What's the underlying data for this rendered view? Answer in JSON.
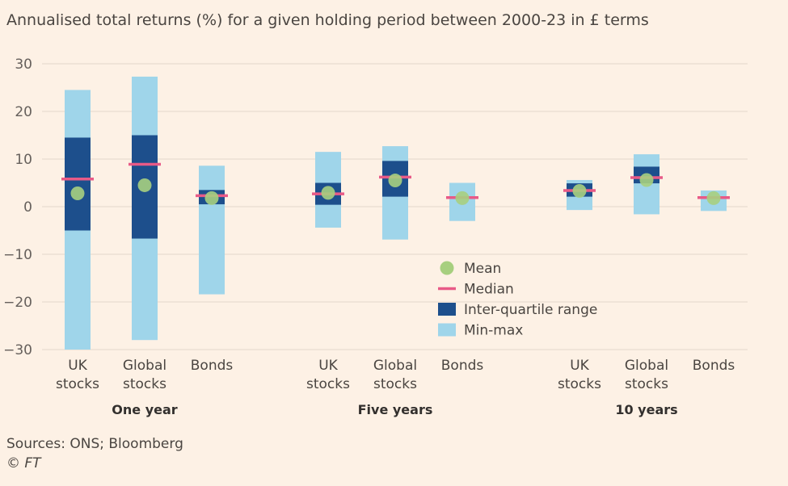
{
  "title": "Annualised total returns (%) for a given holding period between 2000-23 in £ terms",
  "source": "Sources: ONS; Bloomberg",
  "copyright": "© FT",
  "colors": {
    "background": "#fdf1e5",
    "minmax": "#9fd5ea",
    "iqr": "#1d4f8c",
    "median": "#e85a87",
    "mean": "#a7cf7f",
    "grid": "#e4d8cc"
  },
  "chart_data": {
    "type": "box",
    "ylim": [
      -30,
      30
    ],
    "yticks": [
      30,
      20,
      10,
      0,
      -10,
      -20,
      -30
    ],
    "grid": true,
    "legend_position": "center",
    "legend": [
      {
        "key": "mean",
        "label": "Mean"
      },
      {
        "key": "median",
        "label": "Median"
      },
      {
        "key": "iqr",
        "label": "Inter-quartile range"
      },
      {
        "key": "minmax",
        "label": "Min-max"
      }
    ],
    "groups": [
      {
        "label": "One year",
        "items": [
          {
            "label": [
              "UK",
              "stocks"
            ],
            "min": -30,
            "max": 24.5,
            "q1": -5,
            "q3": 14.5,
            "median": 5.8,
            "mean": 2.8
          },
          {
            "label": [
              "Global",
              "stocks"
            ],
            "min": -28,
            "max": 27.3,
            "q1": -6.7,
            "q3": 15,
            "median": 8.9,
            "mean": 4.5
          },
          {
            "label": [
              "Bonds"
            ],
            "min": -18.4,
            "max": 8.6,
            "q1": 0.5,
            "q3": 3.5,
            "median": 2.3,
            "mean": 1.8
          }
        ]
      },
      {
        "label": "Five years",
        "items": [
          {
            "label": [
              "UK",
              "stocks"
            ],
            "min": -4.4,
            "max": 11.5,
            "q1": 0.4,
            "q3": 5,
            "median": 2.7,
            "mean": 2.9
          },
          {
            "label": [
              "Global",
              "stocks"
            ],
            "min": -6.9,
            "max": 12.7,
            "q1": 2.1,
            "q3": 9.6,
            "median": 6.2,
            "mean": 5.5
          },
          {
            "label": [
              "Bonds"
            ],
            "min": -3,
            "max": 5,
            "q1": 1.8,
            "q3": 2.2,
            "median": 1.9,
            "mean": 1.8
          }
        ]
      },
      {
        "label": "10 years",
        "items": [
          {
            "label": [
              "UK",
              "stocks"
            ],
            "min": -0.7,
            "max": 5.6,
            "q1": 2.1,
            "q3": 4.9,
            "median": 3.4,
            "mean": 3.3
          },
          {
            "label": [
              "Global",
              "stocks"
            ],
            "min": -1.6,
            "max": 11,
            "q1": 4.9,
            "q3": 8.4,
            "median": 6.1,
            "mean": 5.6
          },
          {
            "label": [
              "Bonds"
            ],
            "min": -0.9,
            "max": 3.4,
            "q1": 1.8,
            "q3": 2.2,
            "median": 1.9,
            "mean": 1.8
          }
        ]
      }
    ]
  }
}
